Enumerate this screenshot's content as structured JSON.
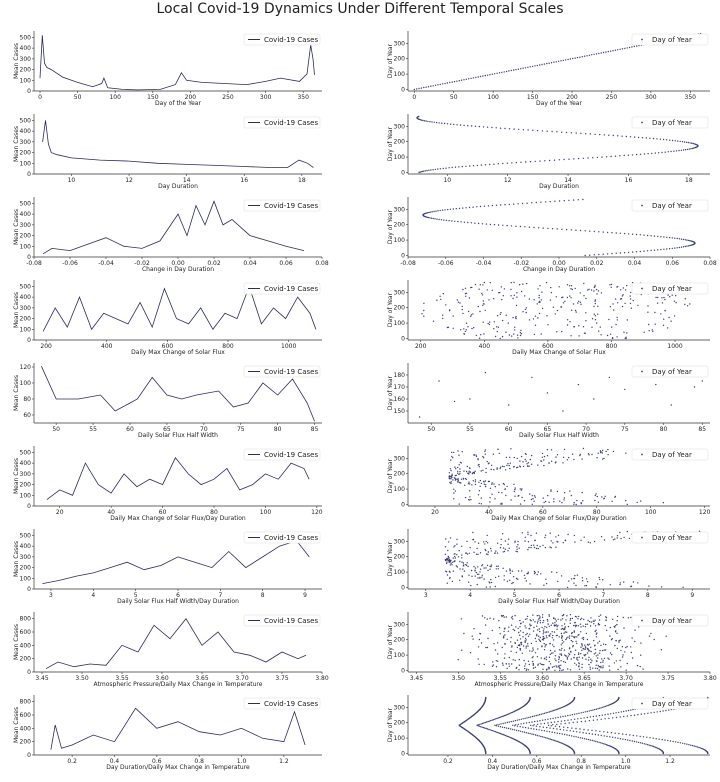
{
  "figure": {
    "title": "Local Covid-19 Dynamics Under Different Temporal Scales"
  },
  "colors": {
    "line": "#2b2b5e",
    "point": "#3b3f7a",
    "axis": "#333333"
  },
  "chart_data": [
    {
      "type": "line",
      "xlabel": "Day of the Year",
      "ylabel": "Mean Cases",
      "legend": "Covid-19 Cases",
      "legend_loc": "top-right",
      "xlim": [
        -8,
        375
      ],
      "xticks": [
        0,
        50,
        100,
        150,
        200,
        250,
        300,
        350
      ],
      "ylim": [
        0,
        560
      ],
      "yticks": [
        0,
        100,
        200,
        300,
        400,
        500
      ],
      "x": [
        0,
        3,
        6,
        9,
        15,
        30,
        50,
        70,
        82,
        85,
        90,
        110,
        130,
        160,
        180,
        188,
        195,
        215,
        245,
        275,
        300,
        320,
        345,
        355,
        360,
        363,
        365
      ],
      "y": [
        120,
        520,
        260,
        220,
        200,
        130,
        80,
        40,
        70,
        120,
        30,
        15,
        10,
        15,
        60,
        170,
        100,
        80,
        70,
        60,
        90,
        120,
        90,
        160,
        430,
        300,
        150
      ]
    },
    {
      "type": "scatter",
      "xlabel": "Day of the Year",
      "ylabel": "Day of Year",
      "legend": "Day of Year",
      "legend_loc": "top-right",
      "xlim": [
        -8,
        375
      ],
      "xticks": [
        0,
        50,
        100,
        150,
        200,
        250,
        300,
        350
      ],
      "ylim": [
        -10,
        380
      ],
      "yticks": [
        0,
        100,
        200,
        300
      ],
      "shape": "identity",
      "x_range": [
        0,
        365
      ]
    },
    {
      "type": "line",
      "xlabel": "Day Duration",
      "ylabel": "Mean Cases",
      "legend": "Covid-19 Cases",
      "legend_loc": "top-right",
      "xlim": [
        8.7,
        18.7
      ],
      "xticks": [
        10,
        12,
        14,
        16,
        18
      ],
      "ylim": [
        0,
        560
      ],
      "yticks": [
        0,
        100,
        200,
        300,
        400,
        500
      ],
      "x": [
        9.0,
        9.1,
        9.2,
        9.3,
        9.5,
        10,
        11,
        12,
        13,
        14,
        15,
        16,
        17,
        17.5,
        17.9,
        18.2,
        18.4
      ],
      "y": [
        300,
        500,
        280,
        200,
        180,
        150,
        130,
        120,
        100,
        90,
        80,
        70,
        60,
        60,
        130,
        100,
        60
      ]
    },
    {
      "type": "scatter",
      "xlabel": "Day Duration",
      "ylabel": "Day of Year",
      "legend": "Day of Year",
      "legend_loc": "top-right",
      "xlim": [
        8.7,
        18.7
      ],
      "xticks": [
        10,
        12,
        14,
        16,
        18
      ],
      "ylim": [
        -10,
        380
      ],
      "yticks": [
        0,
        100,
        200,
        300
      ],
      "shape": "day-duration",
      "min": 9.0,
      "max": 18.3,
      "peak_day": 172
    },
    {
      "type": "line",
      "xlabel": "Change in Day Duration",
      "ylabel": "Mean Cases",
      "legend": "Covid-19 Cases",
      "legend_loc": "top-right",
      "xlim": [
        -0.08,
        0.08
      ],
      "xticks": [
        -0.08,
        -0.06,
        -0.04,
        -0.02,
        0.0,
        0.02,
        0.04,
        0.06,
        0.08
      ],
      "ylim": [
        0,
        560
      ],
      "yticks": [
        0,
        100,
        200,
        300,
        400,
        500
      ],
      "x": [
        -0.075,
        -0.07,
        -0.06,
        -0.05,
        -0.04,
        -0.03,
        -0.02,
        -0.01,
        0.0,
        0.005,
        0.01,
        0.015,
        0.02,
        0.025,
        0.03,
        0.04,
        0.05,
        0.06,
        0.07
      ],
      "y": [
        30,
        80,
        60,
        120,
        180,
        100,
        80,
        150,
        400,
        200,
        480,
        300,
        520,
        300,
        350,
        200,
        150,
        100,
        60
      ]
    },
    {
      "type": "scatter",
      "xlabel": "Change in Day Duration",
      "ylabel": "Day of Year",
      "legend": "Day of Year",
      "legend_loc": "top-right",
      "xlim": [
        -0.08,
        0.08
      ],
      "xticks": [
        -0.08,
        -0.06,
        -0.04,
        -0.02,
        0.0,
        0.02,
        0.04,
        0.06,
        0.08
      ],
      "ylim": [
        -10,
        380
      ],
      "yticks": [
        0,
        100,
        200,
        300
      ],
      "shape": "change-day-duration",
      "amplitude": 0.072,
      "peak_day": 80
    },
    {
      "type": "line",
      "xlabel": "Daily Max Change of Solar Flux",
      "ylabel": "Mean Cases",
      "legend": "Covid-19 Cases",
      "legend_loc": "top-right",
      "xlim": [
        160,
        1110
      ],
      "xticks": [
        200,
        400,
        600,
        800,
        1000
      ],
      "ylim": [
        0,
        560
      ],
      "yticks": [
        0,
        100,
        200,
        300,
        400,
        500
      ],
      "x": [
        190,
        230,
        270,
        310,
        350,
        390,
        430,
        470,
        510,
        550,
        590,
        630,
        670,
        710,
        750,
        790,
        830,
        870,
        910,
        950,
        990,
        1030,
        1070,
        1090
      ],
      "y": [
        80,
        300,
        120,
        400,
        100,
        250,
        200,
        150,
        350,
        120,
        480,
        200,
        150,
        300,
        100,
        250,
        200,
        500,
        150,
        300,
        200,
        400,
        250,
        100
      ]
    },
    {
      "type": "scatter",
      "xlabel": "Daily Max Change of Solar Flux",
      "ylabel": "Day of Year",
      "legend": "Day of Year",
      "legend_loc": "top-right",
      "xlim": [
        160,
        1110
      ],
      "xticks": [
        200,
        400,
        600,
        800,
        1000
      ],
      "ylim": [
        -10,
        380
      ],
      "yticks": [
        0,
        100,
        200,
        300
      ],
      "shape": "scatter-band",
      "x_range": [
        180,
        1090
      ],
      "y_range": [
        0,
        365
      ]
    },
    {
      "type": "line",
      "xlabel": "Daily Solar Flux Half Width",
      "ylabel": "Mean Cases",
      "legend": "Covid-19 Cases",
      "legend_loc": "top-right",
      "xlim": [
        47,
        86
      ],
      "xticks": [
        50,
        55,
        60,
        65,
        70,
        75,
        80,
        85
      ],
      "ylim": [
        50,
        125
      ],
      "yticks": [
        60,
        80,
        100,
        120
      ],
      "x": [
        48,
        50,
        53,
        56,
        58,
        61,
        63,
        65,
        67,
        69,
        72,
        74,
        76,
        78,
        80,
        82,
        84,
        85
      ],
      "y": [
        121,
        80,
        80,
        85,
        65,
        80,
        107,
        85,
        80,
        85,
        90,
        70,
        75,
        100,
        85,
        105,
        75,
        52
      ]
    },
    {
      "type": "scatter",
      "xlabel": "Daily Solar Flux Half Width",
      "ylabel": "Day of Year",
      "legend": "Day of Year",
      "legend_loc": "top-right",
      "xlim": [
        47,
        86
      ],
      "xticks": [
        50,
        55,
        60,
        65,
        70,
        75,
        80,
        85
      ],
      "ylim": [
        140,
        190
      ],
      "yticks": [
        150,
        160,
        170,
        180
      ],
      "x": [
        48.5,
        51,
        53,
        55,
        57,
        60,
        63,
        65,
        67,
        69,
        71,
        73,
        75,
        77,
        79,
        81,
        84,
        85
      ],
      "y": [
        145,
        175,
        158,
        160,
        182,
        155,
        178,
        165,
        150,
        172,
        160,
        178,
        168,
        185,
        172,
        155,
        170,
        175
      ]
    },
    {
      "type": "line",
      "xlabel": "Daily Max Change of Solar Flux/Day Duration",
      "ylabel": "Mean Cases",
      "legend": "Covid-19 Cases",
      "legend_loc": "top-right",
      "xlim": [
        10,
        122
      ],
      "xticks": [
        20,
        40,
        60,
        80,
        100,
        120
      ],
      "ylim": [
        0,
        560
      ],
      "yticks": [
        0,
        100,
        200,
        300,
        400,
        500
      ],
      "x": [
        15,
        20,
        25,
        30,
        35,
        40,
        45,
        50,
        55,
        60,
        65,
        70,
        75,
        80,
        85,
        90,
        95,
        100,
        105,
        110,
        115,
        117
      ],
      "y": [
        60,
        150,
        100,
        400,
        200,
        120,
        300,
        180,
        250,
        200,
        450,
        300,
        200,
        250,
        350,
        150,
        200,
        300,
        250,
        400,
        350,
        250
      ]
    },
    {
      "type": "scatter",
      "xlabel": "Daily Max Change of Solar Flux/Day Duration",
      "ylabel": "Day of Year",
      "legend": "Day of Year",
      "legend_loc": "top-right",
      "xlim": [
        10,
        122
      ],
      "xticks": [
        20,
        40,
        60,
        80,
        100,
        120
      ],
      "ylim": [
        -10,
        380
      ],
      "yticks": [
        0,
        100,
        200,
        300
      ],
      "shape": "funnel",
      "x_range": [
        15,
        118
      ]
    },
    {
      "type": "line",
      "xlabel": "Daily Solar Flux Half Width/Day Duration",
      "ylabel": "Mean Cases",
      "legend": "Covid-19 Cases",
      "legend_loc": "top-right",
      "xlim": [
        2.6,
        9.4
      ],
      "xticks": [
        3,
        4,
        5,
        6,
        7,
        8,
        9
      ],
      "ylim": [
        0,
        560
      ],
      "yticks": [
        0,
        100,
        200,
        300,
        400,
        500
      ],
      "x": [
        2.8,
        3.2,
        3.6,
        4.0,
        4.4,
        4.8,
        5.2,
        5.6,
        6.0,
        6.4,
        6.8,
        7.2,
        7.6,
        8.0,
        8.4,
        8.8,
        9.1
      ],
      "y": [
        50,
        80,
        120,
        150,
        200,
        250,
        180,
        220,
        300,
        250,
        200,
        350,
        200,
        300,
        400,
        450,
        300
      ]
    },
    {
      "type": "scatter",
      "xlabel": "Daily Solar Flux Half Width/Day Duration",
      "ylabel": "Day of Year",
      "legend": "Day of Year",
      "legend_loc": "top-right",
      "xlim": [
        2.6,
        9.4
      ],
      "xticks": [
        3,
        4,
        5,
        6,
        7,
        8,
        9
      ],
      "ylim": [
        -10,
        380
      ],
      "yticks": [
        0,
        100,
        200,
        300
      ],
      "shape": "funnel",
      "x_range": [
        2.8,
        9.2
      ]
    },
    {
      "type": "line",
      "xlabel": "Atmospheric Pressure/Daily Max Change in Temperature",
      "ylabel": "Mean Cases",
      "legend": "Covid-19 Cases",
      "legend_loc": "top-right",
      "xlim": [
        3.44,
        3.8
      ],
      "xticks": [
        3.45,
        3.5,
        3.55,
        3.6,
        3.65,
        3.7,
        3.75,
        3.8
      ],
      "ylim": [
        0,
        900
      ],
      "yticks": [
        0,
        200,
        400,
        600,
        800
      ],
      "x": [
        3.455,
        3.47,
        3.49,
        3.51,
        3.53,
        3.55,
        3.57,
        3.59,
        3.61,
        3.63,
        3.65,
        3.67,
        3.69,
        3.71,
        3.73,
        3.75,
        3.77,
        3.78
      ],
      "y": [
        50,
        150,
        80,
        120,
        100,
        400,
        300,
        700,
        500,
        800,
        400,
        600,
        300,
        250,
        150,
        300,
        200,
        250
      ]
    },
    {
      "type": "scatter",
      "xlabel": "Atmospheric Pressure/Daily Max Change in Temperature",
      "ylabel": "Day of Year",
      "legend": "Day of Year",
      "legend_loc": "top-right",
      "xlim": [
        3.44,
        3.8
      ],
      "xticks": [
        3.45,
        3.5,
        3.55,
        3.6,
        3.65,
        3.7,
        3.75,
        3.8
      ],
      "ylim": [
        -10,
        380
      ],
      "yticks": [
        0,
        100,
        200,
        300
      ],
      "shape": "cloud",
      "x_range": [
        3.455,
        3.78
      ],
      "x_center": 3.62
    },
    {
      "type": "line",
      "xlabel": "Day Duration/Daily Max Change in Temperature",
      "ylabel": "Mean Cases",
      "legend": "Covid-19 Cases",
      "legend_loc": "top-right",
      "xlim": [
        0.02,
        1.38
      ],
      "xticks": [
        0.2,
        0.4,
        0.6,
        0.8,
        1.0,
        1.2
      ],
      "ylim": [
        0,
        900
      ],
      "yticks": [
        0,
        200,
        400,
        600,
        800
      ],
      "x": [
        0.1,
        0.12,
        0.15,
        0.2,
        0.3,
        0.4,
        0.5,
        0.6,
        0.7,
        0.8,
        0.9,
        1.0,
        1.1,
        1.2,
        1.25,
        1.3
      ],
      "y": [
        80,
        450,
        100,
        150,
        300,
        200,
        700,
        400,
        500,
        350,
        300,
        400,
        250,
        200,
        650,
        150
      ]
    },
    {
      "type": "scatter",
      "xlabel": "Day Duration/Daily Max Change in Temperature",
      "ylabel": "Day of Year",
      "legend": "Day of Year",
      "legend_loc": "top-right",
      "xlim": [
        0.02,
        1.38
      ],
      "xticks": [
        0.2,
        0.4,
        0.6,
        0.8,
        1.0,
        1.2
      ],
      "ylim": [
        -10,
        380
      ],
      "yticks": [
        0,
        100,
        200,
        300
      ],
      "shape": "arcs",
      "x_range": [
        0.1,
        1.3
      ]
    }
  ]
}
